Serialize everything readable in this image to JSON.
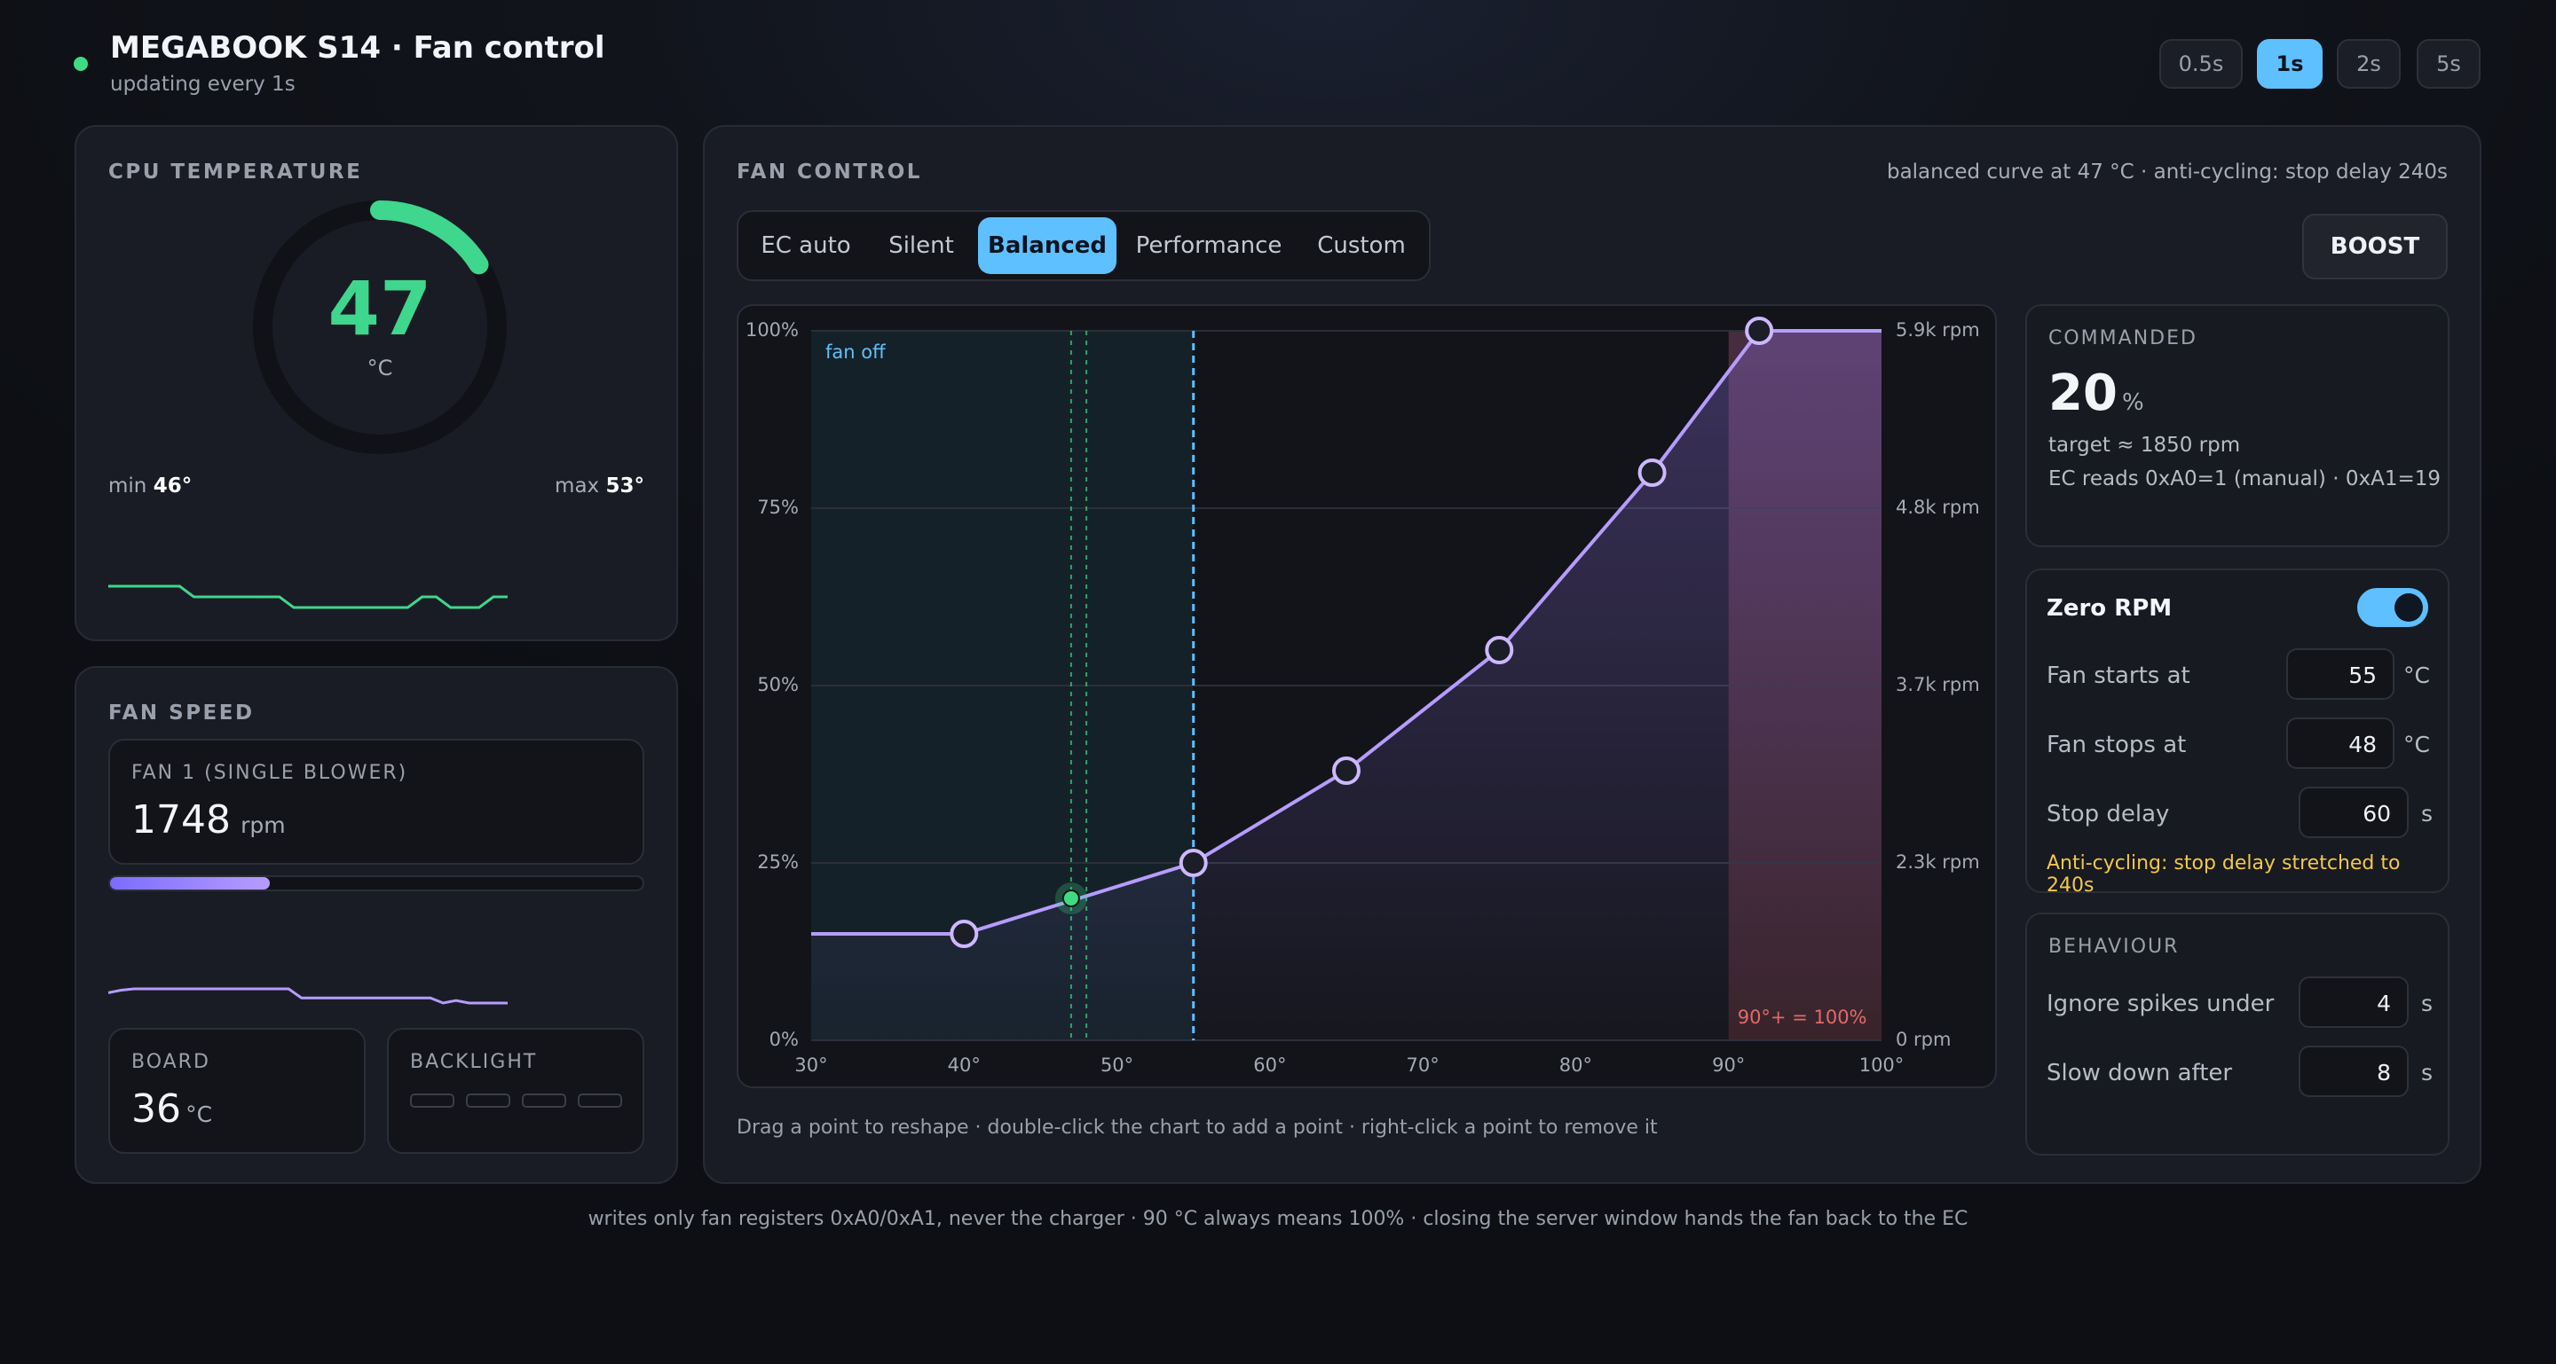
{
  "header": {
    "title": "MEGABOOK S14 · Fan control",
    "subtitle": "updating every 1s",
    "status_color": "#3ddc84"
  },
  "refresh": {
    "options": [
      "0.5s",
      "1s",
      "2s",
      "5s"
    ],
    "selected": "1s"
  },
  "cpu": {
    "caption": "CPU TEMPERATURE",
    "value": "47",
    "unit": "°C",
    "gauge_fraction": 0.16,
    "min_label": "min",
    "min_value": "46°",
    "max_label": "max",
    "max_value": "53°",
    "history": [
      48,
      48,
      48,
      48,
      48,
      48,
      47,
      47,
      47,
      47,
      47,
      47,
      47,
      46,
      46,
      46,
      46,
      46,
      46,
      46,
      46,
      46,
      47,
      47,
      46,
      46,
      46,
      47,
      47
    ]
  },
  "fan_speed": {
    "caption": "FAN SPEED",
    "fan_name": "FAN 1 (SINGLE BLOWER)",
    "rpm_value": "1748",
    "rpm_unit": "rpm",
    "duty_fraction": 0.3,
    "history": [
      1800,
      1820,
      1830,
      1830,
      1830,
      1830,
      1830,
      1830,
      1830,
      1830,
      1830,
      1830,
      1830,
      1830,
      1830,
      1760,
      1760,
      1760,
      1760,
      1760,
      1760,
      1760,
      1760,
      1760,
      1760,
      1760,
      1720,
      1740,
      1720,
      1720,
      1720,
      1720
    ]
  },
  "board": {
    "caption": "BOARD",
    "value": "36",
    "unit": "°C"
  },
  "backlight": {
    "caption": "BACKLIGHT",
    "levels": 4
  },
  "fan_control": {
    "caption": "FAN CONTROL",
    "status": "balanced curve at 47 °C · anti-cycling: stop delay 240s",
    "tabs": [
      "EC auto",
      "Silent",
      "Balanced",
      "Performance",
      "Custom"
    ],
    "active_tab": "Balanced",
    "boost_label": "BOOST",
    "hint": "Drag a point to reshape · double-click the chart to add a point · right-click a point to remove it"
  },
  "chart_data": {
    "type": "line",
    "x_ticks": [
      "30°",
      "40°",
      "50°",
      "60°",
      "70°",
      "80°",
      "90°",
      "100°"
    ],
    "y_ticks_left": [
      "0%",
      "25%",
      "50%",
      "75%",
      "100%"
    ],
    "y_ticks_right": [
      "0 rpm",
      "2.3k rpm",
      "3.7k rpm",
      "4.8k rpm",
      "5.9k rpm"
    ],
    "xlim": [
      30,
      100
    ],
    "ylim": [
      0,
      100
    ],
    "grid": true,
    "series": [
      {
        "points": [
          [
            30,
            15
          ],
          [
            40,
            15
          ],
          [
            55,
            25
          ],
          [
            65,
            38
          ],
          [
            75,
            55
          ],
          [
            85,
            80
          ],
          [
            92,
            100
          ],
          [
            100,
            100
          ]
        ],
        "handles": [
          [
            40,
            15
          ],
          [
            55,
            25
          ],
          [
            65,
            38
          ],
          [
            75,
            55
          ],
          [
            85,
            80
          ],
          [
            92,
            100
          ]
        ]
      }
    ],
    "current_point": [
      47,
      20
    ],
    "fan_off_zone": [
      30,
      55
    ],
    "fan_off_label": "fan off",
    "start_line": 55,
    "stop_line": 48,
    "current_line": 47,
    "forced_zone_start": 90,
    "forced_label": "90°+ = 100%",
    "colors": {
      "curve": "#b79cff",
      "start_line": "#5ec0ff",
      "stop_line": "#3ddc84",
      "forced": "#e06a6a"
    }
  },
  "commanded": {
    "caption": "COMMANDED",
    "value": "20",
    "unit": "%",
    "target": "target ≈ 1850 rpm",
    "ec": "EC reads 0xA0=1 (manual) · 0xA1=19"
  },
  "zero_rpm": {
    "title": "Zero RPM",
    "enabled": true,
    "starts_label": "Fan starts at",
    "starts_value": "55",
    "stops_label": "Fan stops at",
    "stops_value": "48",
    "delay_label": "Stop delay",
    "delay_value": "60",
    "temp_unit": "°C",
    "sec_unit": "s",
    "warning": "Anti-cycling: stop delay stretched to 240s"
  },
  "behaviour": {
    "caption": "BEHAVIOUR",
    "spikes_label": "Ignore spikes under",
    "spikes_value": "4",
    "slow_label": "Slow down after",
    "slow_value": "8",
    "unit": "s"
  },
  "footer": "writes only fan registers 0xA0/0xA1, never the charger · 90 °C always means 100% · closing the server window hands the fan back to the EC"
}
